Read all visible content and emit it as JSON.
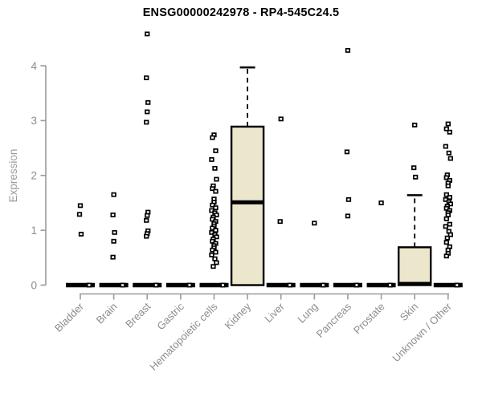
{
  "chart_data": {
    "type": "boxplot",
    "title": "ENSG00000242978 - RP4-545C24.5",
    "ylabel": "Expression",
    "xlabel": "",
    "ylim": [
      0,
      4.6
    ],
    "yticks": [
      0,
      1,
      2,
      3,
      4
    ],
    "grid": false,
    "legend": null,
    "categories": [
      "Bladder",
      "Brain",
      "Breast",
      "Gastric",
      "Hematopoietic cells",
      "Kidney",
      "Liver",
      "Lung",
      "Pancreas",
      "Prostate",
      "Skin",
      "Unknown / Other"
    ],
    "series": [
      {
        "category": "Bladder",
        "q1": 0,
        "median": 0,
        "q3": 0,
        "whisker_high": 0,
        "points": [
          1.45,
          1.29,
          0.93
        ]
      },
      {
        "category": "Brain",
        "q1": 0,
        "median": 0,
        "q3": 0,
        "whisker_high": 0,
        "points": [
          1.65,
          1.28,
          0.96,
          0.8,
          0.51
        ]
      },
      {
        "category": "Breast",
        "q1": 0,
        "median": 0,
        "q3": 0,
        "whisker_high": 0,
        "points": [
          4.58,
          3.78,
          3.33,
          3.16,
          2.97,
          1.33,
          1.27,
          1.18,
          0.99,
          0.94,
          0.89
        ]
      },
      {
        "category": "Gastric",
        "q1": 0,
        "median": 0,
        "q3": 0,
        "whisker_high": 0,
        "points": []
      },
      {
        "category": "Hematopoietic cells",
        "q1": 0,
        "median": 0,
        "q3": 0,
        "whisker_high": 0,
        "points": [
          2.74,
          2.69,
          2.45,
          2.29,
          2.13,
          1.93,
          1.81,
          1.76,
          1.71,
          1.57,
          1.51,
          1.46,
          1.41,
          1.36,
          1.32,
          1.28,
          1.24,
          1.2,
          1.16,
          1.12,
          1.08,
          1.04,
          1.0,
          0.96,
          0.92,
          0.88,
          0.84,
          0.8,
          0.76,
          0.72,
          0.68,
          0.64,
          0.6,
          0.55,
          0.48,
          0.41,
          0.34
        ]
      },
      {
        "category": "Kidney",
        "q1": 0,
        "median": 1.51,
        "q3": 2.89,
        "whisker_high": 3.97,
        "points": []
      },
      {
        "category": "Liver",
        "q1": 0,
        "median": 0,
        "q3": 0,
        "whisker_high": 0,
        "points": [
          3.03,
          1.16
        ]
      },
      {
        "category": "Lung",
        "q1": 0,
        "median": 0,
        "q3": 0,
        "whisker_high": 0,
        "points": [
          1.13
        ]
      },
      {
        "category": "Pancreas",
        "q1": 0,
        "median": 0,
        "q3": 0,
        "whisker_high": 0,
        "points": [
          4.28,
          2.43,
          1.56,
          1.26
        ]
      },
      {
        "category": "Prostate",
        "q1": 0,
        "median": 0,
        "q3": 0,
        "whisker_high": 0,
        "points": [
          1.5
        ]
      },
      {
        "category": "Skin",
        "q1": 0,
        "median": 0,
        "q3": 0.69,
        "whisker_high": 1.64,
        "points": [
          2.92,
          2.14,
          1.97
        ]
      },
      {
        "category": "Unknown / Other",
        "q1": 0,
        "median": 0,
        "q3": 0,
        "whisker_high": 0,
        "points": [
          2.94,
          2.85,
          2.79,
          2.53,
          2.41,
          2.31,
          2.01,
          1.96,
          1.91,
          1.86,
          1.81,
          1.65,
          1.6,
          1.56,
          1.52,
          1.48,
          1.44,
          1.4,
          1.36,
          1.32,
          1.28,
          1.21,
          1.11,
          1.07,
          0.98,
          0.92,
          0.86,
          0.78,
          0.7,
          0.64,
          0.58,
          0.53
        ]
      }
    ],
    "colors": {
      "box_fill": "#ECE6CC",
      "box_stroke": "#000000",
      "point_stroke": "#000000",
      "point_fill": "#FFFFFF",
      "axis": "#9B9B9B",
      "tick_label": "#8C8C8C",
      "title": "#000000",
      "background": "#FFFFFF"
    }
  }
}
